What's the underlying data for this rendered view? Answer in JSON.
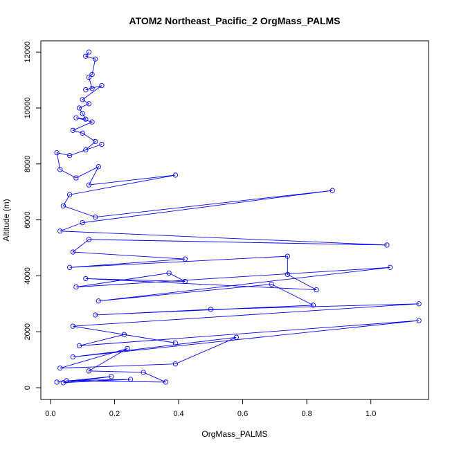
{
  "chart_data": {
    "type": "line",
    "title": "ATOM2 Northeast_Pacific_2 OrgMass_PALMS",
    "xlabel": "OrgMass_PALMS",
    "ylabel": "Altitude (m)",
    "xlim": [
      -0.03,
      1.18
    ],
    "ylim": [
      -420,
      12400
    ],
    "xticks": [
      0.0,
      0.2,
      0.4,
      0.6,
      0.8,
      1.0
    ],
    "xtick_labels": [
      "0.0",
      "0.2",
      "0.4",
      "0.6",
      "0.8",
      "1.0"
    ],
    "yticks": [
      0,
      2000,
      4000,
      6000,
      8000,
      10000,
      12000
    ],
    "ytick_labels": [
      "0",
      "2000",
      "4000",
      "6000",
      "8000",
      "10000",
      "12000"
    ],
    "grid": false,
    "legend": "none",
    "marker": "open-circle",
    "series": [
      {
        "color": "#0000ff",
        "points": [
          [
            0.12,
            12000
          ],
          [
            0.11,
            11850
          ],
          [
            0.14,
            11750
          ],
          [
            0.13,
            11200
          ],
          [
            0.12,
            11100
          ],
          [
            0.13,
            10700
          ],
          [
            0.11,
            10650
          ],
          [
            0.16,
            10800
          ],
          [
            0.1,
            10300
          ],
          [
            0.12,
            10150
          ],
          [
            0.09,
            10000
          ],
          [
            0.1,
            9800
          ],
          [
            0.11,
            9600
          ],
          [
            0.08,
            9650
          ],
          [
            0.13,
            9500
          ],
          [
            0.07,
            9200
          ],
          [
            0.1,
            9100
          ],
          [
            0.14,
            8800
          ],
          [
            0.11,
            8500
          ],
          [
            0.16,
            8700
          ],
          [
            0.06,
            8300
          ],
          [
            0.02,
            8400
          ],
          [
            0.03,
            7800
          ],
          [
            0.08,
            7500
          ],
          [
            0.15,
            7900
          ],
          [
            0.12,
            7250
          ],
          [
            0.39,
            7600
          ],
          [
            0.06,
            6900
          ],
          [
            0.04,
            6500
          ],
          [
            0.14,
            6100
          ],
          [
            0.88,
            7050
          ],
          [
            0.1,
            5900
          ],
          [
            0.03,
            5600
          ],
          [
            1.05,
            5100
          ],
          [
            0.12,
            5300
          ],
          [
            0.07,
            4850
          ],
          [
            0.42,
            4600
          ],
          [
            0.06,
            4300
          ],
          [
            0.74,
            4700
          ],
          [
            0.74,
            4050
          ],
          [
            0.83,
            3500
          ],
          [
            0.11,
            3900
          ],
          [
            0.42,
            3800
          ],
          [
            0.37,
            4100
          ],
          [
            0.08,
            3600
          ],
          [
            1.06,
            4300
          ],
          [
            0.15,
            3100
          ],
          [
            0.69,
            3700
          ],
          [
            0.82,
            2950
          ],
          [
            0.14,
            2600
          ],
          [
            0.5,
            2800
          ],
          [
            1.15,
            3000
          ],
          [
            0.07,
            2200
          ],
          [
            0.39,
            1600
          ],
          [
            0.23,
            1900
          ],
          [
            0.09,
            1500
          ],
          [
            1.15,
            2400
          ],
          [
            0.07,
            1100
          ],
          [
            0.58,
            1800
          ],
          [
            0.39,
            850
          ],
          [
            0.03,
            700
          ],
          [
            0.24,
            1400
          ],
          [
            0.12,
            600
          ],
          [
            0.29,
            550
          ],
          [
            0.36,
            200
          ],
          [
            0.05,
            250
          ],
          [
            0.25,
            300
          ],
          [
            0.04,
            180
          ],
          [
            0.19,
            400
          ],
          [
            0.02,
            200
          ]
        ]
      }
    ]
  }
}
